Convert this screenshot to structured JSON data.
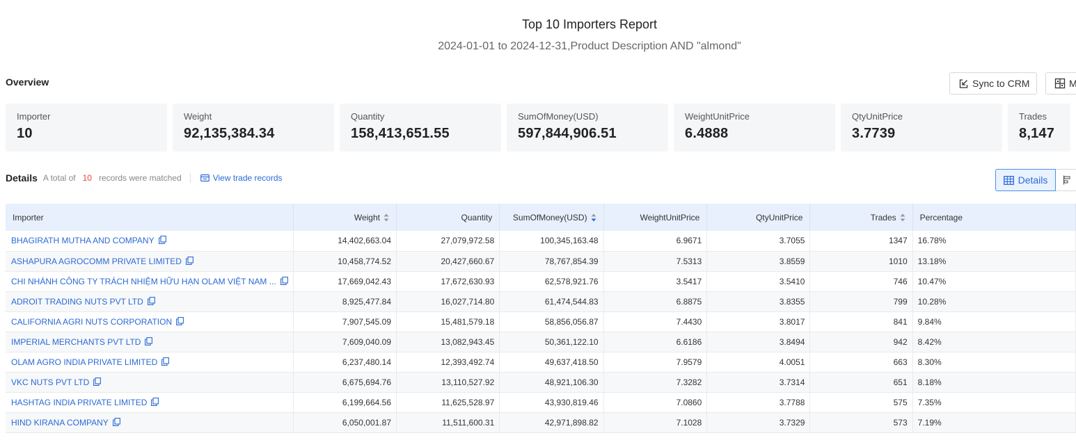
{
  "report": {
    "title": "Top 10 Importers Report",
    "subtitle": "2024-01-01 to 2024-12-31,Product Description AND \"almond\""
  },
  "overview": {
    "label": "Overview",
    "sync_label": "Sync to CRM",
    "more_label": "M",
    "cards": [
      {
        "label": "Importer",
        "value": "10"
      },
      {
        "label": "Weight",
        "value": "92,135,384.34"
      },
      {
        "label": "Quantity",
        "value": "158,413,651.55"
      },
      {
        "label": "SumOfMoney(USD)",
        "value": "597,844,906.51"
      },
      {
        "label": "WeightUnitPrice",
        "value": "6.4888"
      },
      {
        "label": "QtyUnitPrice",
        "value": "3.7739"
      },
      {
        "label": "Trades",
        "value": "8,147"
      }
    ]
  },
  "details": {
    "label": "Details",
    "total_prefix": "A total of",
    "total_count": "10",
    "total_suffix": "records were matched",
    "view_link": "View trade records",
    "details_button": "Details"
  },
  "table": {
    "columns": [
      "Importer",
      "Weight",
      "Quantity",
      "SumOfMoney(USD)",
      "WeightUnitPrice",
      "QtyUnitPrice",
      "Trades",
      "Percentage"
    ],
    "rows": [
      {
        "importer": "BHAGIRATH MUTHA AND COMPANY",
        "weight": "14,402,663.04",
        "quantity": "27,079,972.58",
        "money": "100,345,163.48",
        "wup": "6.9671",
        "qup": "3.7055",
        "trades": "1347",
        "pct": "16.78%"
      },
      {
        "importer": "ASHAPURA AGROCOMM PRIVATE LIMITED",
        "weight": "10,458,774.52",
        "quantity": "20,427,660.67",
        "money": "78,767,854.39",
        "wup": "7.5313",
        "qup": "3.8559",
        "trades": "1010",
        "pct": "13.18%"
      },
      {
        "importer": "CHI NHÁNH CÔNG TY TRÁCH NHIỆM HỮU HẠN OLAM VIỆT NAM ...",
        "weight": "17,669,042.43",
        "quantity": "17,672,630.93",
        "money": "62,578,921.76",
        "wup": "3.5417",
        "qup": "3.5410",
        "trades": "746",
        "pct": "10.47%"
      },
      {
        "importer": "ADROIT TRADING NUTS PVT LTD",
        "weight": "8,925,477.84",
        "quantity": "16,027,714.80",
        "money": "61,474,544.83",
        "wup": "6.8875",
        "qup": "3.8355",
        "trades": "799",
        "pct": "10.28%"
      },
      {
        "importer": "CALIFORNIA AGRI NUTS CORPORATION",
        "weight": "7,907,545.09",
        "quantity": "15,481,579.18",
        "money": "58,856,056.87",
        "wup": "7.4430",
        "qup": "3.8017",
        "trades": "841",
        "pct": "9.84%"
      },
      {
        "importer": "IMPERIAL MERCHANTS PVT LTD",
        "weight": "7,609,040.09",
        "quantity": "13,082,943.45",
        "money": "50,361,122.10",
        "wup": "6.6186",
        "qup": "3.8494",
        "trades": "942",
        "pct": "8.42%"
      },
      {
        "importer": "OLAM AGRO INDIA PRIVATE LIMITED",
        "weight": "6,237,480.14",
        "quantity": "12,393,492.74",
        "money": "49,637,418.50",
        "wup": "7.9579",
        "qup": "4.0051",
        "trades": "663",
        "pct": "8.30%"
      },
      {
        "importer": "VKC NUTS PVT LTD",
        "weight": "6,675,694.76",
        "quantity": "13,110,527.92",
        "money": "48,921,106.30",
        "wup": "7.3282",
        "qup": "3.7314",
        "trades": "651",
        "pct": "8.18%"
      },
      {
        "importer": "HASHTAG INDIA PRIVATE LIMITED",
        "weight": "6,199,664.56",
        "quantity": "11,625,528.97",
        "money": "43,930,819.46",
        "wup": "7.0860",
        "qup": "3.7788",
        "trades": "575",
        "pct": "7.35%"
      },
      {
        "importer": "HIND KIRANA COMPANY",
        "weight": "6,050,001.87",
        "quantity": "11,511,600.31",
        "money": "42,971,898.82",
        "wup": "7.1028",
        "qup": "3.7329",
        "trades": "573",
        "pct": "7.19%"
      }
    ]
  },
  "colors": {
    "accent": "#2b6ad6",
    "count": "#e8453c",
    "header_bg": "#e7f0fc",
    "card_bg": "#f5f6f8"
  }
}
